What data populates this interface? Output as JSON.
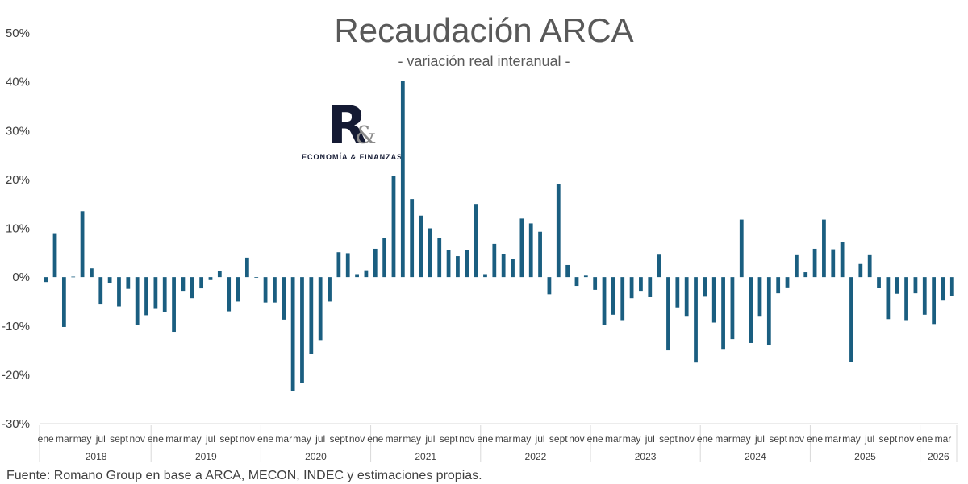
{
  "chart_data": {
    "type": "bar",
    "title": "Recaudación ARCA",
    "subtitle": "- variación real interanual -",
    "source": "Fuente: Romano Group en base a ARCA, MECON, INDEC y estimaciones propias.",
    "ylim": [
      -30,
      50
    ],
    "yticks": [
      "-30%",
      "-20%",
      "-10%",
      "0%",
      "10%",
      "20%",
      "30%",
      "40%",
      "50%"
    ],
    "bar_color": "#1a5e80",
    "grid": false,
    "month_tick_labels": [
      "ene",
      "mar",
      "may",
      "jul",
      "sept",
      "nov"
    ],
    "years": [
      {
        "label": "2018",
        "months": 12
      },
      {
        "label": "2019",
        "months": 12
      },
      {
        "label": "2020",
        "months": 12
      },
      {
        "label": "2021",
        "months": 12
      },
      {
        "label": "2022",
        "months": 12
      },
      {
        "label": "2023",
        "months": 12
      },
      {
        "label": "2024",
        "months": 12
      },
      {
        "label": "2025",
        "months": 12
      },
      {
        "label": "2026",
        "months": 4
      }
    ],
    "values": [
      -1,
      9,
      -10.2,
      0.1,
      13.5,
      1.8,
      -5.6,
      -1.3,
      -6,
      -2.4,
      -9.8,
      -7.8,
      -6.5,
      -7.2,
      -11.2,
      -2.8,
      -4.3,
      -2.3,
      -0.6,
      1.2,
      -7,
      -5,
      4,
      0,
      -5.2,
      -5.2,
      -8.7,
      -23.3,
      -21.6,
      -15.8,
      -12.9,
      -5,
      5.1,
      4.9,
      0.6,
      1.4,
      5.8,
      8,
      20.7,
      40.2,
      16,
      12.6,
      10,
      8,
      5.5,
      4.3,
      5.5,
      15,
      0.6,
      6.8,
      4.8,
      3.8,
      12,
      11,
      9.3,
      -3.5,
      19,
      2.5,
      -1.8,
      0.3,
      -2.6,
      -9.8,
      -7.7,
      -8.8,
      -4.3,
      -2.8,
      -4.1,
      4.6,
      -15,
      -6.2,
      -8.1,
      -17.5,
      -4,
      -9.3,
      -14.7,
      -12.7,
      11.8,
      -13.5,
      -8.1,
      -14,
      -3.3,
      -2.1,
      4.5,
      1,
      5.8,
      11.8,
      5.7,
      7.2,
      -17.3,
      2.7,
      4.5,
      -2.2,
      -8.6,
      -3.4,
      -8.8,
      -3.3,
      -7.7,
      -9.6,
      -4.8,
      -3.8
    ]
  },
  "logo": {
    "letter": "R",
    "amp": "&",
    "text": "ECONOMÍA & FINANZAS"
  }
}
